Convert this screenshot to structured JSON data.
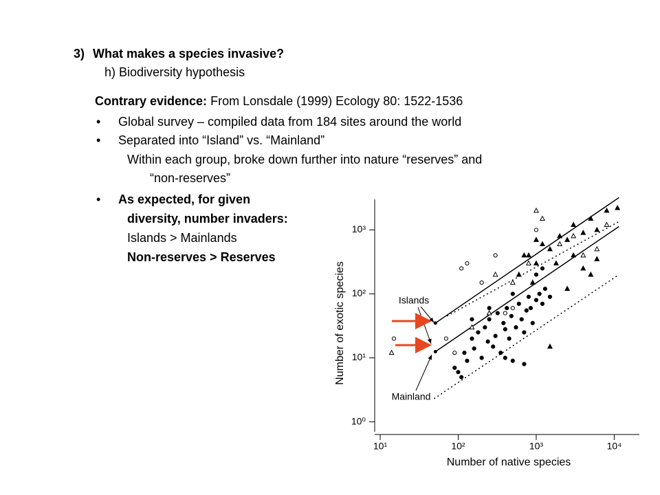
{
  "slide": {
    "title_number": "3)",
    "title": "What makes a species invasive?",
    "subtitle": "h) Biodiversity hypothesis",
    "evidence_label": "Contrary evidence:",
    "evidence_text": "From Lonsdale (1999) Ecology 80: 1522-1536",
    "bullets": [
      {
        "text": "Global survey – compiled data from 184 sites around the world"
      },
      {
        "text": "Separated into “Island” vs. “Mainland”",
        "sub": [
          "Within each group, broke down further into nature “reserves” and",
          "“non-reserves”"
        ]
      },
      {
        "text": "As expected, for given",
        "sub": [
          "diversity, number invaders:",
          "Islands > Mainlands",
          "Non-reserves > Reserves"
        ]
      }
    ]
  },
  "chart_data": {
    "type": "scatter",
    "x_label": "Number of native species",
    "y_label": "Number of exotic species",
    "log_x": true,
    "log_y": true,
    "xlim": [
      8.5,
      21000
    ],
    "ylim": [
      0.7,
      3000
    ],
    "xticks": [
      {
        "value": 10,
        "label": "10¹"
      },
      {
        "value": 100,
        "label": "10²"
      },
      {
        "value": 1000,
        "label": "10³"
      },
      {
        "value": 10000,
        "label": "10⁴"
      }
    ],
    "yticks": [
      {
        "value": 1,
        "label": "10⁰"
      },
      {
        "value": 10,
        "label": "10¹"
      },
      {
        "value": 100,
        "label": "10²"
      },
      {
        "value": 1000,
        "label": "10³"
      }
    ],
    "annotations": [
      "Islands",
      "Mainland"
    ],
    "series": [
      {
        "marker": "circle",
        "filled": true,
        "color": "#000",
        "x": [
          90,
          100,
          110,
          120,
          130,
          150,
          160,
          180,
          200,
          220,
          240,
          250,
          280,
          300,
          320,
          350,
          380,
          400,
          420,
          450,
          480,
          500,
          550,
          600,
          650,
          700,
          750,
          800,
          850,
          900,
          1000,
          1100,
          1200,
          1300,
          1500,
          700,
          400,
          150,
          250,
          500,
          1000,
          1200
        ],
        "values": [
          7,
          6,
          5,
          12,
          9,
          20,
          14,
          25,
          10,
          30,
          18,
          40,
          15,
          22,
          50,
          12,
          35,
          28,
          60,
          20,
          45,
          9,
          30,
          70,
          40,
          25,
          55,
          90,
          60,
          35,
          80,
          100,
          70,
          120,
          90,
          8,
          10,
          40,
          60,
          100,
          200,
          250
        ]
      },
      {
        "marker": "triangle",
        "filled": true,
        "color": "#000",
        "x": [
          600,
          800,
          1000,
          1200,
          1500,
          2000,
          2500,
          3000,
          4000,
          5000,
          6000,
          8000,
          11000,
          900,
          1800,
          3000,
          4000,
          5000,
          6000,
          1500,
          2500,
          700,
          1000
        ],
        "values": [
          200,
          400,
          300,
          600,
          500,
          800,
          700,
          1200,
          900,
          1500,
          1000,
          2000,
          2200,
          150,
          300,
          400,
          250,
          200,
          350,
          15,
          120,
          400,
          700
        ]
      },
      {
        "marker": "circle",
        "filled": false,
        "color": "#000",
        "x": [
          15,
          110,
          130,
          200,
          300,
          90,
          70,
          400,
          500,
          1000
        ],
        "values": [
          20,
          250,
          300,
          150,
          400,
          12,
          20,
          50,
          60,
          1000
        ]
      },
      {
        "marker": "triangle",
        "filled": false,
        "color": "#000",
        "x": [
          14,
          300,
          500,
          800,
          1200,
          1000,
          2000,
          4000,
          6000,
          3000,
          150,
          250,
          8000
        ],
        "values": [
          12,
          200,
          150,
          300,
          1500,
          2000,
          600,
          400,
          500,
          800,
          30,
          50,
          1200
        ]
      }
    ],
    "lines": [
      {
        "style": "solid",
        "x": [
          51,
          11500
        ],
        "values": [
          35,
          3200
        ]
      },
      {
        "style": "solid",
        "x": [
          51,
          11500
        ],
        "values": [
          12.5,
          1130
        ]
      },
      {
        "style": "dotted",
        "x": [
          72,
          11500
        ],
        "values": [
          45,
          1350
        ]
      },
      {
        "style": "dotted",
        "x": [
          49,
          11500
        ],
        "values": [
          2.3,
          200
        ]
      }
    ]
  }
}
